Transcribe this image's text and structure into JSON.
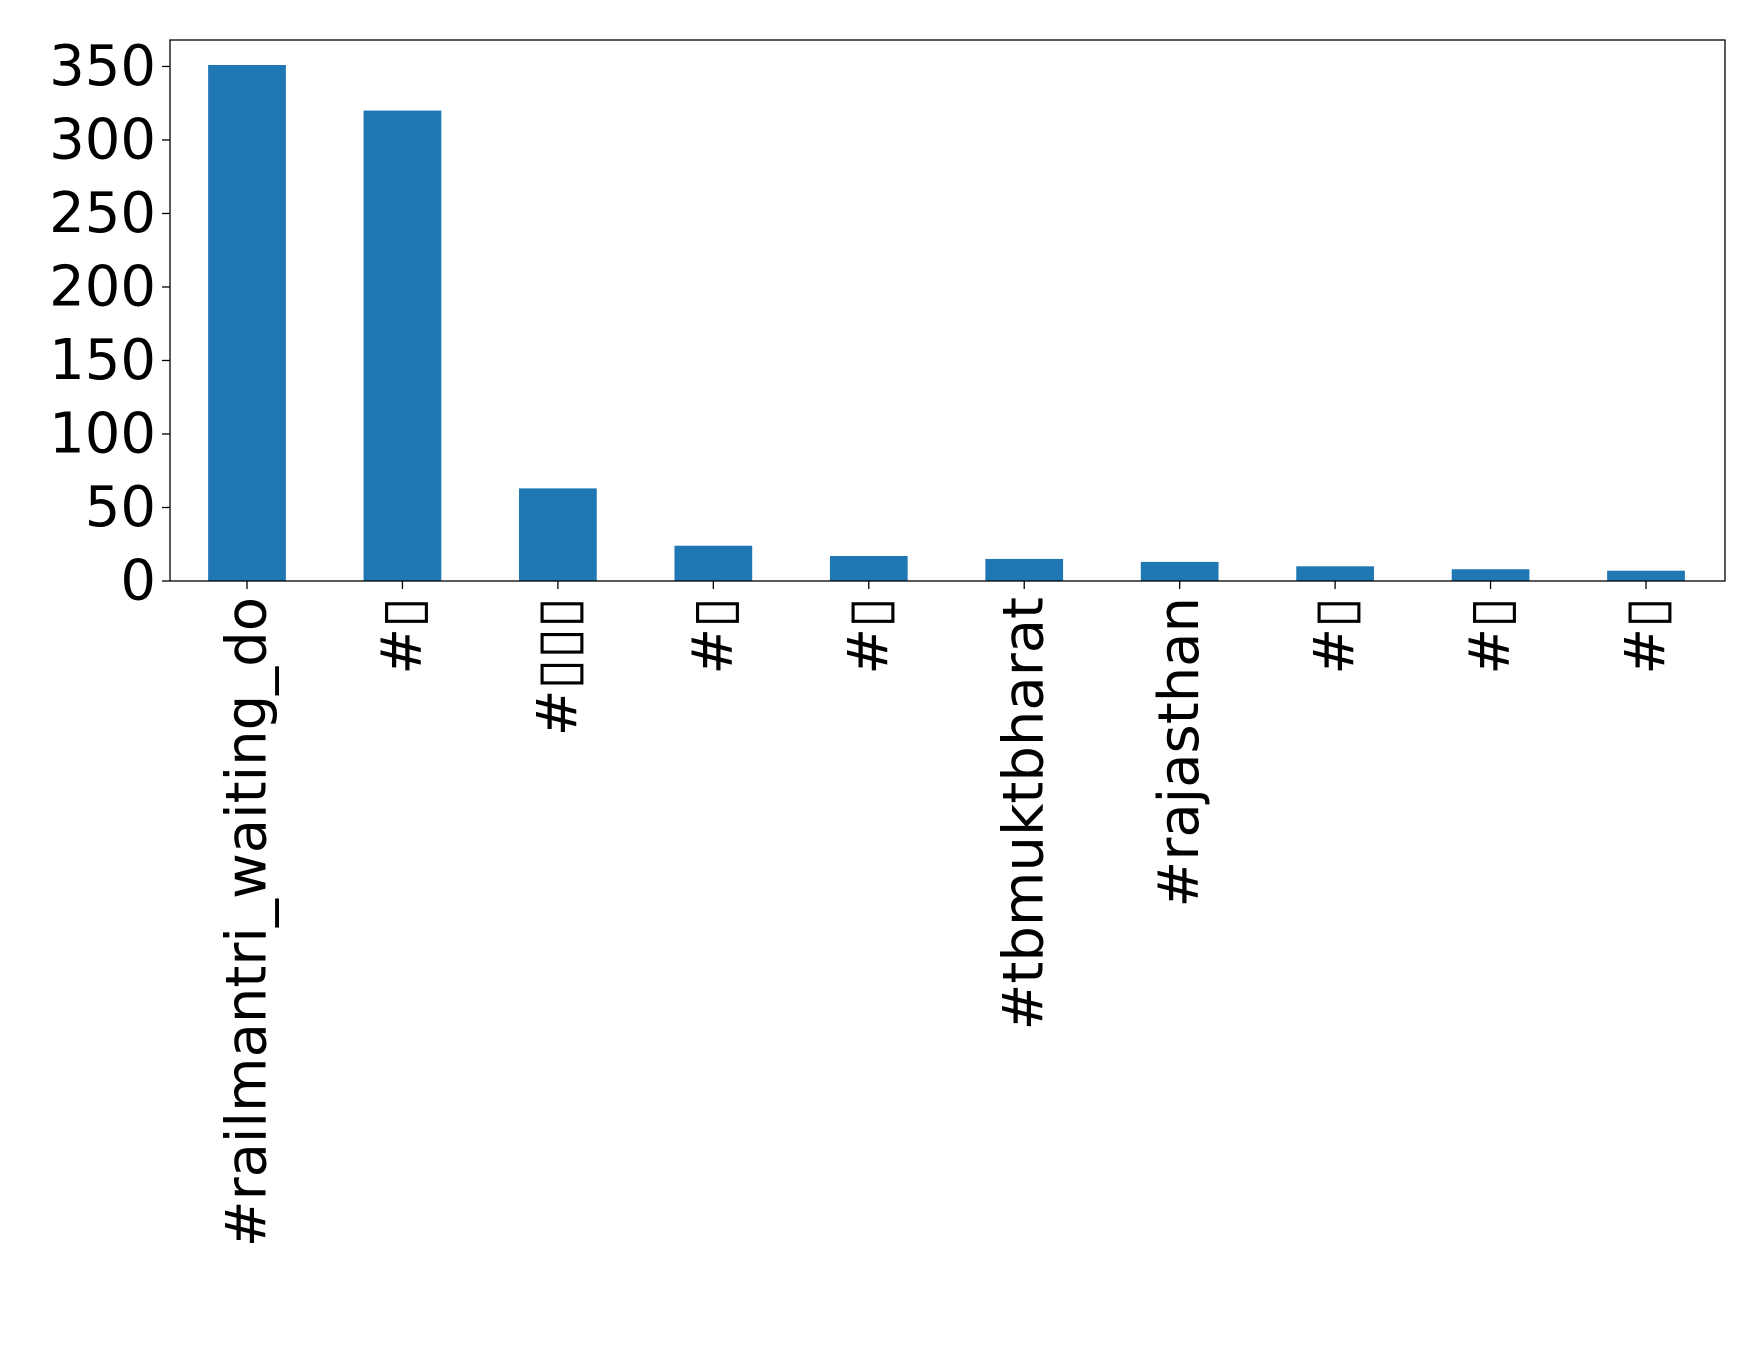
{
  "chart_data": {
    "type": "bar",
    "categories": [
      "#railmantri_waiting_do",
      "#▯",
      "#▯▯▯",
      "#▯",
      "#▯",
      "#tbmuktbharat",
      "#rajasthan",
      "#▯",
      "#▯",
      "#▯"
    ],
    "values": [
      351,
      320,
      63,
      24,
      17,
      15,
      13,
      10,
      8,
      7
    ],
    "title": "",
    "xlabel": "",
    "ylabel": "",
    "ylim": [
      0,
      368
    ],
    "yticks": [
      0,
      50,
      100,
      150,
      200,
      250,
      300,
      350
    ],
    "grid": false,
    "legend": "none",
    "bar_color": "#1f77b4"
  }
}
